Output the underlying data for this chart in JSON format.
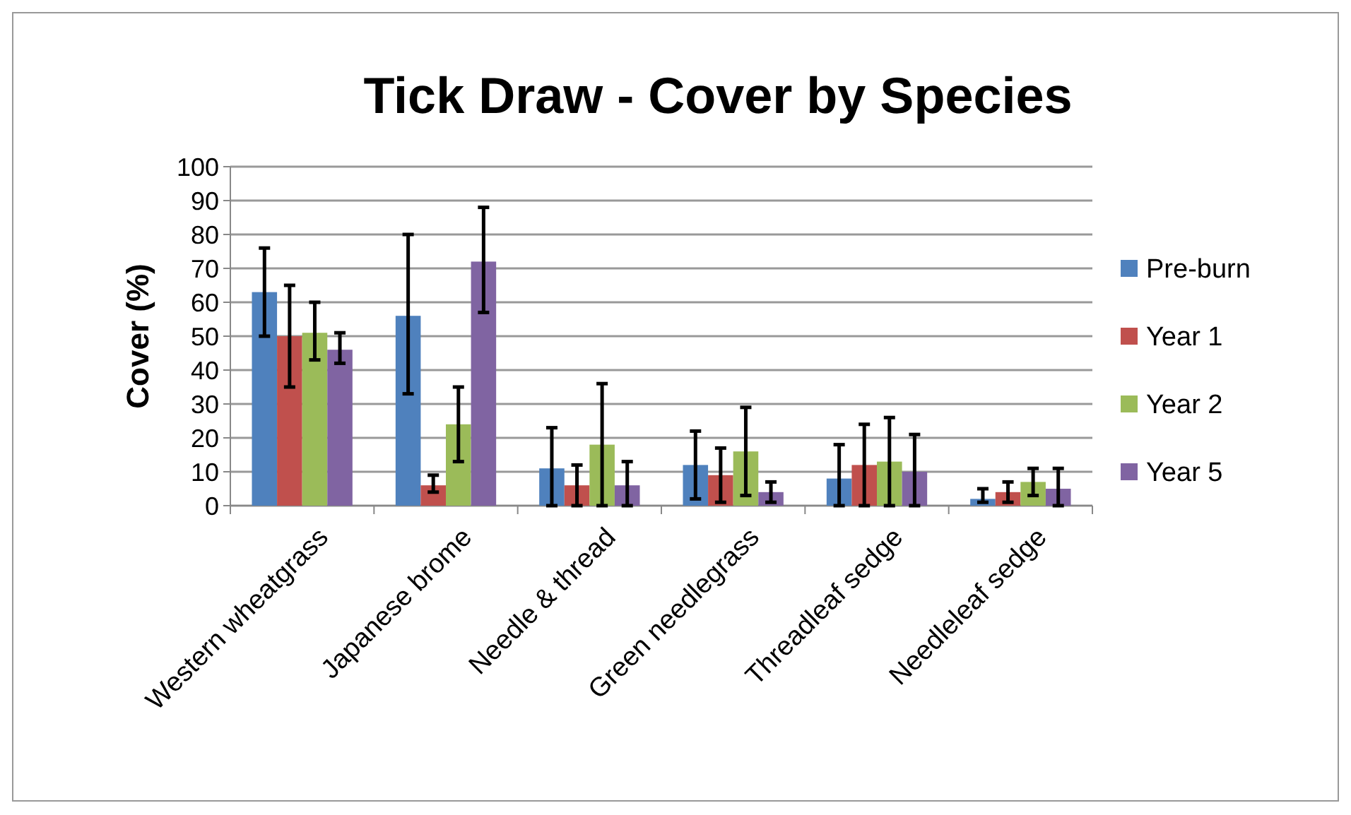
{
  "chart_data": {
    "type": "bar",
    "title": "Tick Draw - Cover by Species",
    "ylabel": "Cover (%)",
    "categories": [
      "Western wheatgrass",
      "Japanese brome",
      "Needle & thread",
      "Green needlegrass",
      "Threadleaf sedge",
      "Needleleaf sedge"
    ],
    "series": [
      {
        "name": "Pre-burn",
        "color": "#4f81bd",
        "values": [
          63,
          56,
          11,
          12,
          8,
          2
        ],
        "errors": [
          [
            50,
            76
          ],
          [
            33,
            80
          ],
          [
            0,
            23
          ],
          [
            2,
            22
          ],
          [
            0,
            18
          ],
          [
            1,
            5
          ]
        ]
      },
      {
        "name": "Year 1",
        "color": "#c0504d",
        "values": [
          50,
          6,
          6,
          9,
          12,
          4
        ],
        "errors": [
          [
            35,
            65
          ],
          [
            4,
            9
          ],
          [
            0,
            12
          ],
          [
            1,
            17
          ],
          [
            0,
            24
          ],
          [
            1,
            7
          ]
        ]
      },
      {
        "name": "Year 2",
        "color": "#9bbb59",
        "values": [
          51,
          24,
          18,
          16,
          13,
          7
        ],
        "errors": [
          [
            43,
            60
          ],
          [
            13,
            35
          ],
          [
            0,
            36
          ],
          [
            3,
            29
          ],
          [
            0,
            26
          ],
          [
            3,
            11
          ]
        ]
      },
      {
        "name": "Year 5",
        "color": "#8064a2",
        "values": [
          46,
          72,
          6,
          4,
          10,
          5
        ],
        "errors": [
          [
            42,
            51
          ],
          [
            57,
            88
          ],
          [
            0,
            13
          ],
          [
            1,
            7
          ],
          [
            0,
            21
          ],
          [
            0,
            11
          ]
        ]
      }
    ],
    "ylim": [
      0,
      100
    ],
    "yticks": [
      0,
      10,
      20,
      30,
      40,
      50,
      60,
      70,
      80,
      90,
      100
    ],
    "grid": "y",
    "legend": "right"
  }
}
